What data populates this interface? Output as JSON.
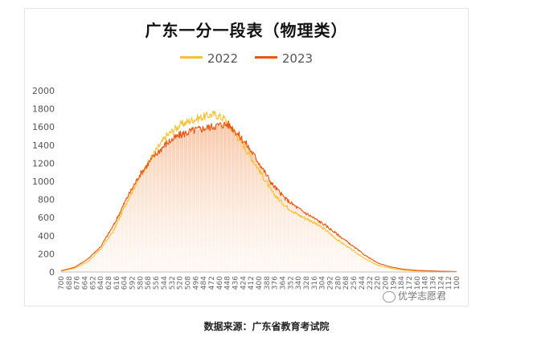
{
  "page": {
    "footer_note": "数据来源：广东省教育考试院",
    "watermark_text": "优学志愿君"
  },
  "chart_data": {
    "type": "area",
    "title": "广东一分一段表（物理类）",
    "xlabel": "",
    "ylabel": "",
    "x_range": [
      700,
      100
    ],
    "ylim": [
      0,
      2000
    ],
    "y_ticks": [
      0,
      200,
      400,
      600,
      800,
      1000,
      1200,
      1400,
      1600,
      1800,
      2000
    ],
    "x_tick_labels": [
      "700",
      "688",
      "676",
      "664",
      "652",
      "640",
      "628",
      "616",
      "604",
      "592",
      "580",
      "568",
      "556",
      "544",
      "532",
      "520",
      "508",
      "496",
      "484",
      "472",
      "460",
      "448",
      "436",
      "424",
      "412",
      "400",
      "388",
      "376",
      "364",
      "352",
      "340",
      "328",
      "316",
      "304",
      "292",
      "280",
      "268",
      "256",
      "244",
      "232",
      "220",
      "208",
      "196",
      "184",
      "172",
      "160",
      "148",
      "136",
      "124",
      "112",
      "100"
    ],
    "legend_position": "top-center",
    "grid": false,
    "series": [
      {
        "name": "2022",
        "color": "#f5c232",
        "points": [
          [
            700,
            10
          ],
          [
            680,
            40
          ],
          [
            660,
            110
          ],
          [
            640,
            250
          ],
          [
            620,
            460
          ],
          [
            600,
            780
          ],
          [
            580,
            1060
          ],
          [
            560,
            1300
          ],
          [
            540,
            1500
          ],
          [
            520,
            1620
          ],
          [
            500,
            1680
          ],
          [
            480,
            1720
          ],
          [
            468,
            1740
          ],
          [
            452,
            1690
          ],
          [
            440,
            1580
          ],
          [
            420,
            1360
          ],
          [
            400,
            1130
          ],
          [
            380,
            880
          ],
          [
            360,
            730
          ],
          [
            340,
            630
          ],
          [
            320,
            560
          ],
          [
            300,
            470
          ],
          [
            280,
            350
          ],
          [
            260,
            250
          ],
          [
            240,
            150
          ],
          [
            220,
            75
          ],
          [
            200,
            40
          ],
          [
            180,
            20
          ],
          [
            160,
            12
          ],
          [
            140,
            8
          ],
          [
            120,
            5
          ],
          [
            100,
            3
          ]
        ]
      },
      {
        "name": "2023",
        "color": "#e8560f",
        "points": [
          [
            700,
            15
          ],
          [
            680,
            50
          ],
          [
            660,
            140
          ],
          [
            640,
            280
          ],
          [
            620,
            520
          ],
          [
            600,
            820
          ],
          [
            580,
            1080
          ],
          [
            560,
            1270
          ],
          [
            540,
            1420
          ],
          [
            520,
            1510
          ],
          [
            500,
            1560
          ],
          [
            480,
            1590
          ],
          [
            460,
            1620
          ],
          [
            448,
            1630
          ],
          [
            440,
            1590
          ],
          [
            420,
            1420
          ],
          [
            400,
            1210
          ],
          [
            380,
            970
          ],
          [
            360,
            810
          ],
          [
            340,
            700
          ],
          [
            320,
            610
          ],
          [
            300,
            520
          ],
          [
            280,
            410
          ],
          [
            260,
            300
          ],
          [
            240,
            190
          ],
          [
            220,
            100
          ],
          [
            200,
            55
          ],
          [
            180,
            30
          ],
          [
            160,
            18
          ],
          [
            140,
            12
          ],
          [
            120,
            8
          ],
          [
            100,
            5
          ]
        ]
      }
    ]
  }
}
